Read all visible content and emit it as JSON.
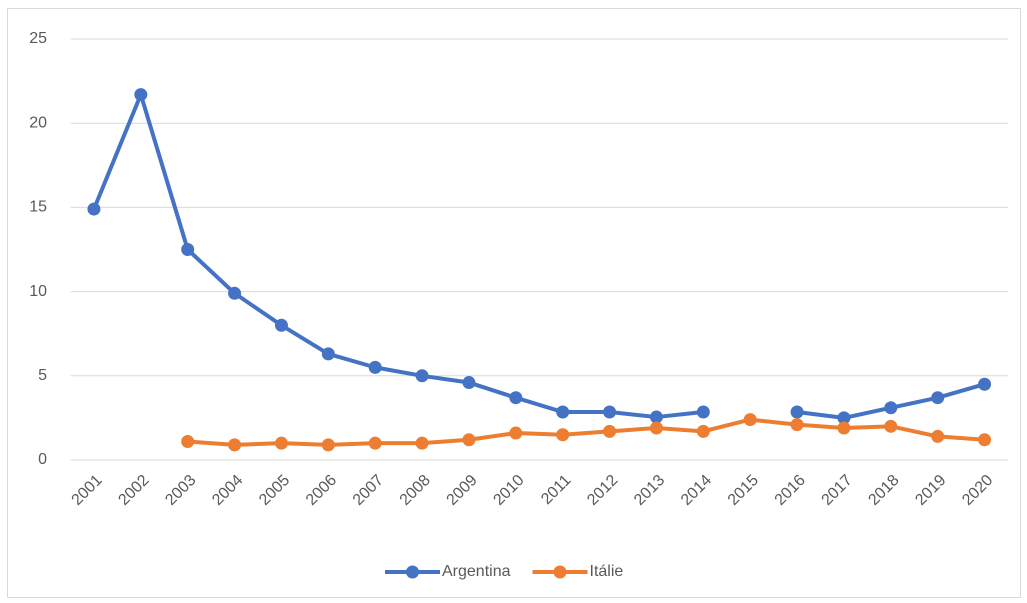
{
  "chart_data": {
    "type": "line",
    "categories": [
      "2001",
      "2002",
      "2003",
      "2004",
      "2005",
      "2006",
      "2007",
      "2008",
      "2009",
      "2010",
      "2011",
      "2012",
      "2013",
      "2014",
      "2015",
      "2016",
      "2017",
      "2018",
      "2019",
      "2020"
    ],
    "series": [
      {
        "name": "Argentina",
        "color": "#4472c4",
        "values": [
          14.9,
          21.7,
          12.5,
          9.9,
          8.0,
          6.3,
          5.5,
          5.0,
          4.6,
          3.7,
          2.85,
          2.85,
          2.55,
          2.85,
          null,
          2.85,
          2.5,
          3.1,
          3.7,
          4.5
        ]
      },
      {
        "name": "Itálie",
        "color": "#ed7d31",
        "values": [
          null,
          null,
          1.1,
          0.9,
          1.0,
          0.9,
          1.0,
          1.0,
          1.2,
          1.6,
          1.5,
          1.7,
          1.9,
          1.7,
          2.4,
          2.1,
          1.9,
          2.0,
          1.4,
          1.2
        ]
      }
    ],
    "ylim": [
      0,
      25
    ],
    "yticks": [
      0,
      5,
      10,
      15,
      20,
      25
    ],
    "grid": true,
    "legend": "bottom"
  }
}
